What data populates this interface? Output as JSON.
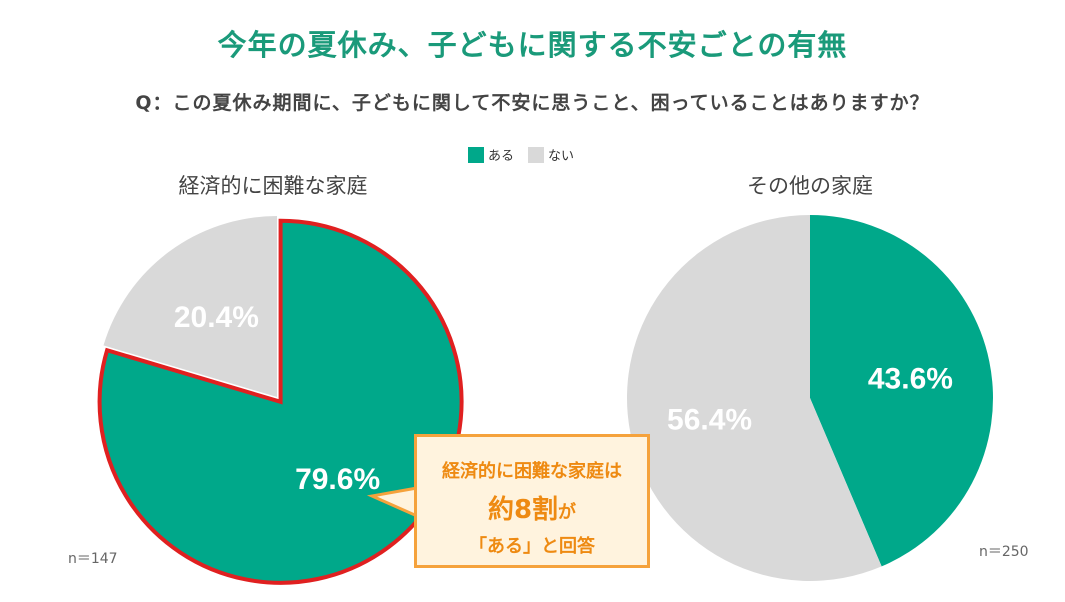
{
  "header": {
    "title": "今年の夏休み、子どもに関する不安ごとの有無",
    "question": "Q：この夏休み期間に、子どもに関して不安に思うこと、困っていることはありますか？"
  },
  "legend": [
    {
      "label": "ある",
      "color": "#00a88a"
    },
    {
      "label": "ない",
      "color": "#d9d9d9"
    }
  ],
  "callout": {
    "line1": "経済的に困難な家庭は",
    "line2_big": "約8割",
    "line2_small": "が",
    "line3": "「ある」と回答"
  },
  "chart_data": [
    {
      "type": "pie",
      "title": "経済的に困難な家庭",
      "n_label": "n＝147",
      "slices": [
        {
          "label": "ある",
          "value": 79.6,
          "display": "79.6%",
          "color": "#00a88a"
        },
        {
          "label": "ない",
          "value": 20.4,
          "display": "20.4%",
          "color": "#d9d9d9"
        }
      ],
      "highlight_slice": "ある",
      "highlight_color": "#e02020"
    },
    {
      "type": "pie",
      "title": "その他の家庭",
      "n_label": "n＝250",
      "slices": [
        {
          "label": "ある",
          "value": 43.6,
          "display": "43.6%",
          "color": "#00a88a"
        },
        {
          "label": "ない",
          "value": 56.4,
          "display": "56.4%",
          "color": "#d9d9d9"
        }
      ]
    }
  ]
}
